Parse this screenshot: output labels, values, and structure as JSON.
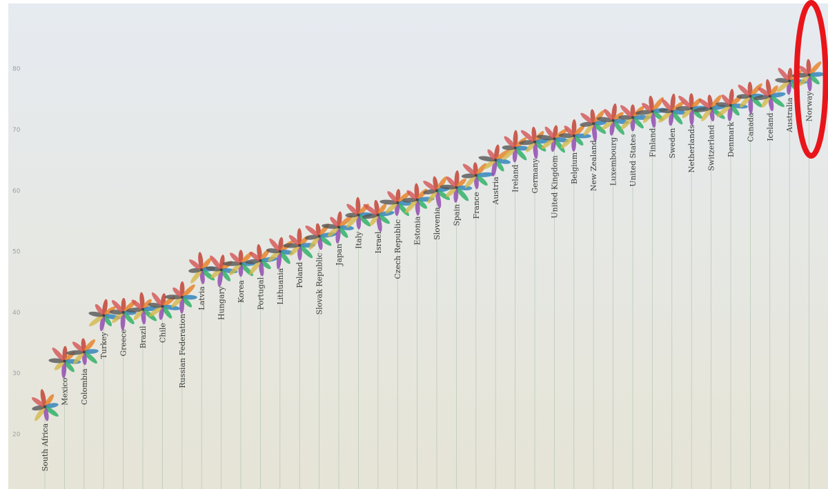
{
  "chart_data": {
    "type": "scatter",
    "title": "",
    "xlabel": "",
    "ylabel": "",
    "ylim": [
      10,
      90
    ],
    "y_ticks": [
      "20",
      "30",
      "40",
      "50",
      "60",
      "70",
      "80"
    ],
    "y_tick_values": [
      20,
      30,
      40,
      50,
      60,
      70,
      80
    ],
    "grid": false,
    "categories": [
      "South Africa",
      "Mexico",
      "Colombia",
      "Turkey",
      "Greece",
      "Brazil",
      "Chile",
      "Russian Federation",
      "Latvia",
      "Hungary",
      "Korea",
      "Portugal",
      "Lithuania",
      "Poland",
      "Slovak Republic",
      "Japan",
      "Italy",
      "Israel",
      "Czech Republic",
      "Estonia",
      "Slovenia",
      "Spain",
      "France",
      "Austria",
      "Ireland",
      "Germany",
      "United Kingdom",
      "Belgium",
      "New Zealand",
      "Luxembourg",
      "United States",
      "Finland",
      "Sweden",
      "Netherlands",
      "Switzerland",
      "Denmark",
      "Canada",
      "Iceland",
      "Australia",
      "Norway"
    ],
    "values": [
      24.5,
      32,
      33.5,
      39.5,
      40,
      40.5,
      41,
      42.5,
      47,
      47,
      48,
      48.5,
      50,
      51,
      52.5,
      54,
      56,
      56,
      58,
      58.5,
      60,
      60.5,
      62.5,
      65,
      67,
      68,
      68.5,
      69,
      71,
      71.5,
      72,
      73,
      73,
      73.5,
      73.5,
      74,
      75.5,
      75.5,
      78,
      79
    ],
    "highlight": "Norway",
    "highlight_color": "#e8161b",
    "petal_colors": [
      "#c0392b",
      "#e67e22",
      "#2980b9",
      "#27ae60",
      "#8e44ad",
      "#d4b84a",
      "#555555",
      "#d35454"
    ]
  }
}
